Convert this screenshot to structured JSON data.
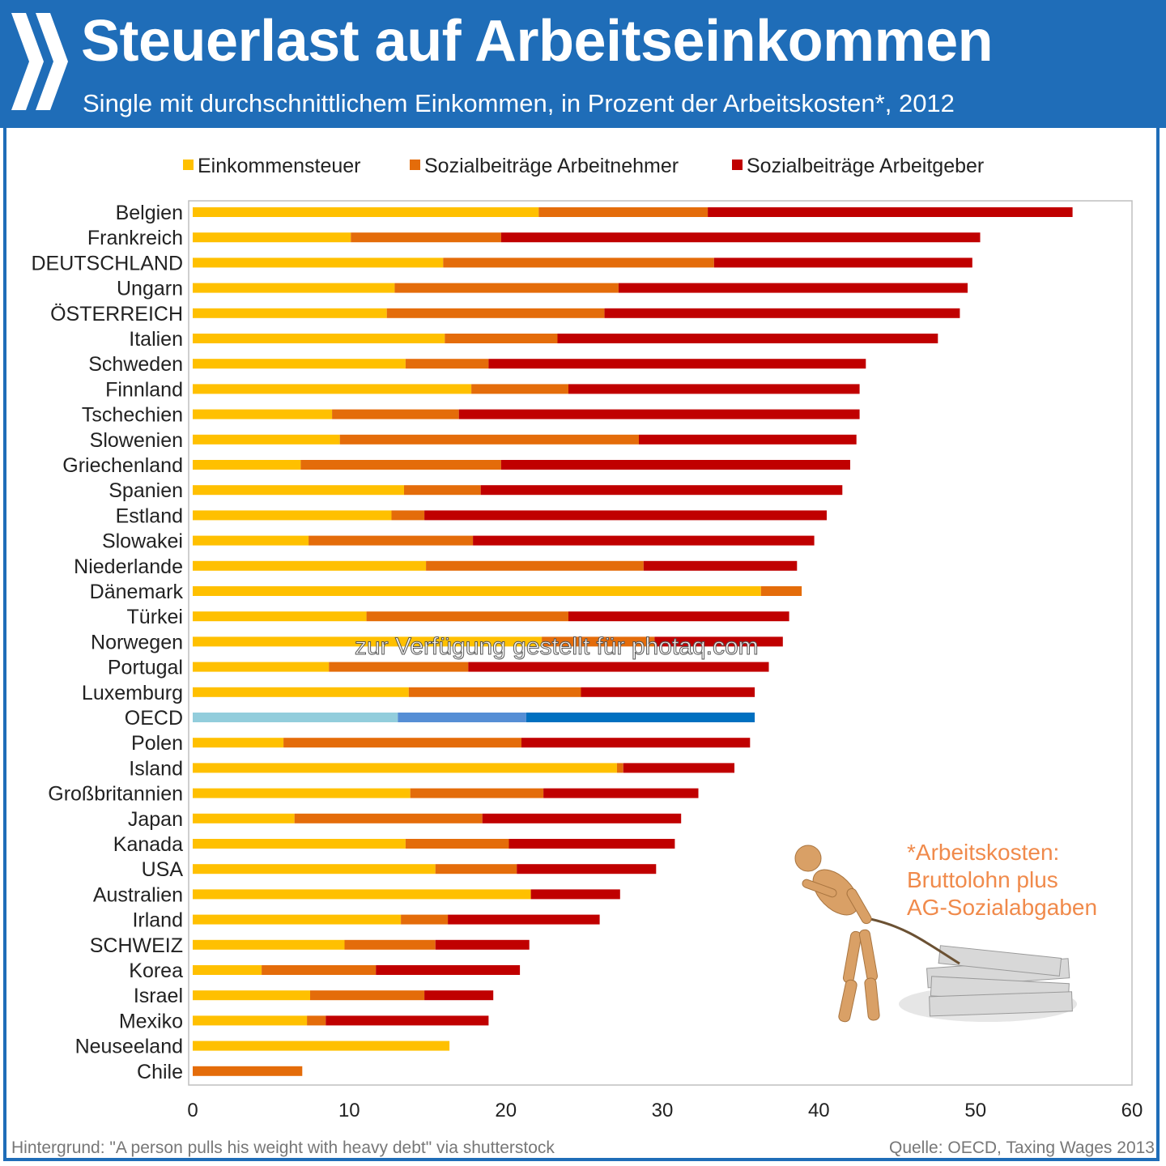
{
  "header": {
    "title": "Steuerlast auf Arbeitseinkommen",
    "subtitle": "Single mit durchschnittlichem Einkommen, in Prozent der Arbeitskosten*, 2012"
  },
  "note": {
    "line1": "*Arbeitskosten:",
    "line2": "Bruttolohn plus",
    "line3": "AG-Sozialabgaben"
  },
  "footer": {
    "background_credit": "Hintergrund: \"A person pulls his weight with heavy debt\" via shutterstock",
    "source": "Quelle: OECD, Taxing Wages 2013"
  },
  "watermark": "zur Verfügung gestellt für photaq.com",
  "colors": {
    "header_bg": "#1f6db8",
    "income_tax": "#ffc000",
    "employee_social": "#e46c0a",
    "employer_social": "#c00000",
    "oecd_income_tax": "#92cddc",
    "oecd_employee_social": "#558ed5",
    "oecd_employer_social": "#0070c0"
  },
  "chart_data": {
    "type": "bar",
    "orientation": "horizontal",
    "stacked": true,
    "title": "Steuerlast auf Arbeitseinkommen",
    "subtitle": "Single mit durchschnittlichem Einkommen, in Prozent der Arbeitskosten*, 2012",
    "xlim": [
      0,
      60
    ],
    "xticks": [
      0,
      10,
      20,
      30,
      40,
      50,
      60
    ],
    "legend_position": "top",
    "grid": false,
    "highlight_category": "OECD",
    "categories": [
      "Belgien",
      "Frankreich",
      "DEUTSCHLAND",
      "Ungarn",
      "ÖSTERREICH",
      "Italien",
      "Schweden",
      "Finnland",
      "Tschechien",
      "Slowenien",
      "Griechenland",
      "Spanien",
      "Estland",
      "Slowakei",
      "Niederlande",
      "Dänemark",
      "Türkei",
      "Norwegen",
      "Portugal",
      "Luxemburg",
      "OECD",
      "Polen",
      "Island",
      "Großbritannien",
      "Japan",
      "Kanada",
      "USA",
      "Australien",
      "Irland",
      "SCHWEIZ",
      "Korea",
      "Israel",
      "Mexiko",
      "Neuseeland",
      "Chile"
    ],
    "series": [
      {
        "name": "Einkommensteuer",
        "values": [
          22.1,
          10.1,
          16.0,
          12.9,
          12.4,
          16.1,
          13.6,
          17.8,
          8.9,
          9.4,
          6.9,
          13.5,
          12.7,
          7.4,
          14.9,
          36.3,
          11.1,
          22.3,
          8.7,
          13.8,
          13.1,
          5.8,
          27.1,
          13.9,
          6.5,
          13.6,
          15.5,
          21.6,
          13.3,
          9.7,
          4.4,
          7.5,
          7.3,
          16.4,
          0.0
        ]
      },
      {
        "name": "Sozialbeiträge Arbeitnehmer",
        "values": [
          10.8,
          9.6,
          17.3,
          14.3,
          13.9,
          7.2,
          5.3,
          6.2,
          8.1,
          19.1,
          12.8,
          4.9,
          2.1,
          10.5,
          13.9,
          2.6,
          12.9,
          7.2,
          8.9,
          11.0,
          8.2,
          15.2,
          0.4,
          8.5,
          12.0,
          6.6,
          5.2,
          0.0,
          3.0,
          5.8,
          7.3,
          7.3,
          1.2,
          0.0,
          7.0
        ]
      },
      {
        "name": "Sozialbeiträge Arbeitgeber",
        "values": [
          23.3,
          30.6,
          16.5,
          22.3,
          22.7,
          24.3,
          24.1,
          18.6,
          25.6,
          13.9,
          22.3,
          23.1,
          25.7,
          21.8,
          9.8,
          0.0,
          14.1,
          8.2,
          19.2,
          11.1,
          14.6,
          14.6,
          7.1,
          9.9,
          12.7,
          10.6,
          8.9,
          5.7,
          9.7,
          6.0,
          9.2,
          4.4,
          10.4,
          0.0,
          0.0
        ]
      }
    ]
  }
}
